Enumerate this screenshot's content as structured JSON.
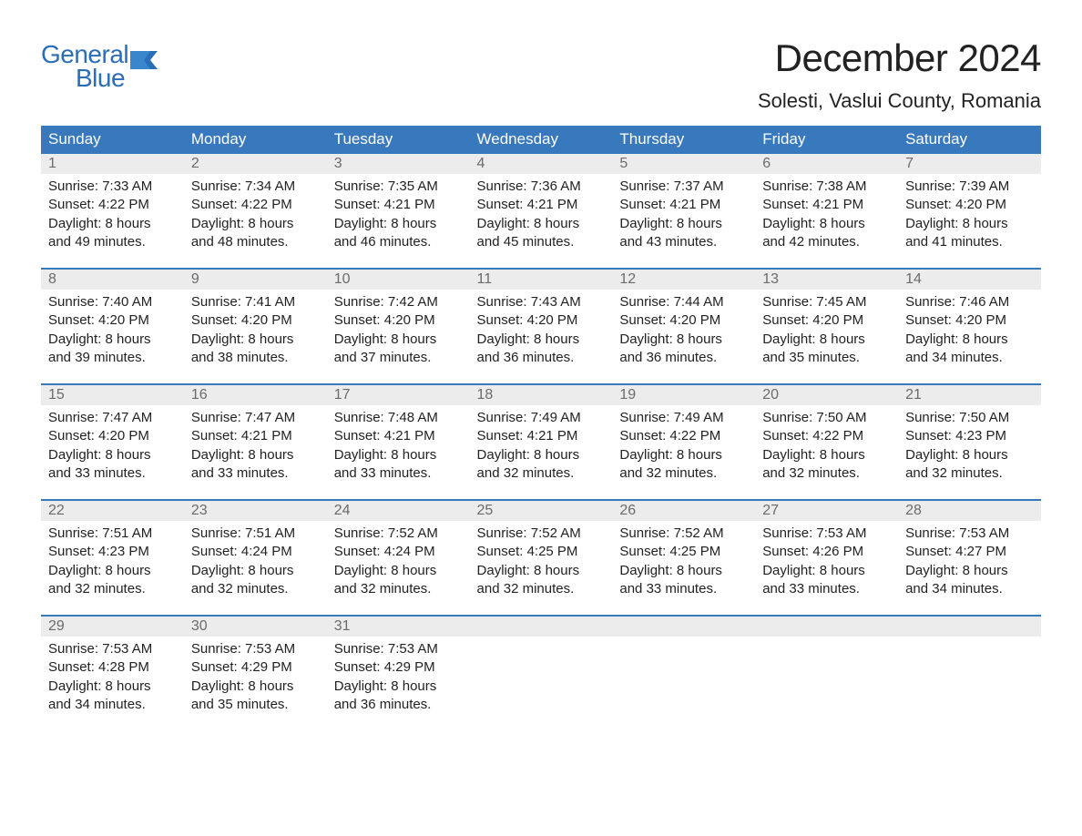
{
  "logo": {
    "text_general": "General",
    "text_blue": "Blue",
    "brand_color": "#2a6eb8",
    "flag_color": "#2a6eb8"
  },
  "title": {
    "month": "December 2024",
    "location": "Solesti, Vaslui County, Romania",
    "title_fontsize": 42,
    "location_fontsize": 22,
    "title_color": "#222222"
  },
  "styles": {
    "header_bg": "#3878bd",
    "header_text_color": "#ffffff",
    "daynum_bg": "#ececec",
    "daynum_color": "#6b6b6b",
    "body_text_color": "#222222",
    "row_border_color": "#3878bd",
    "page_bg": "#ffffff",
    "cell_fontsize": 15,
    "header_fontsize": 17
  },
  "days_of_week": [
    "Sunday",
    "Monday",
    "Tuesday",
    "Wednesday",
    "Thursday",
    "Friday",
    "Saturday"
  ],
  "weeks": [
    [
      {
        "num": "1",
        "sunrise": "Sunrise: 7:33 AM",
        "sunset": "Sunset: 4:22 PM",
        "d1": "Daylight: 8 hours",
        "d2": "and 49 minutes."
      },
      {
        "num": "2",
        "sunrise": "Sunrise: 7:34 AM",
        "sunset": "Sunset: 4:22 PM",
        "d1": "Daylight: 8 hours",
        "d2": "and 48 minutes."
      },
      {
        "num": "3",
        "sunrise": "Sunrise: 7:35 AM",
        "sunset": "Sunset: 4:21 PM",
        "d1": "Daylight: 8 hours",
        "d2": "and 46 minutes."
      },
      {
        "num": "4",
        "sunrise": "Sunrise: 7:36 AM",
        "sunset": "Sunset: 4:21 PM",
        "d1": "Daylight: 8 hours",
        "d2": "and 45 minutes."
      },
      {
        "num": "5",
        "sunrise": "Sunrise: 7:37 AM",
        "sunset": "Sunset: 4:21 PM",
        "d1": "Daylight: 8 hours",
        "d2": "and 43 minutes."
      },
      {
        "num": "6",
        "sunrise": "Sunrise: 7:38 AM",
        "sunset": "Sunset: 4:21 PM",
        "d1": "Daylight: 8 hours",
        "d2": "and 42 minutes."
      },
      {
        "num": "7",
        "sunrise": "Sunrise: 7:39 AM",
        "sunset": "Sunset: 4:20 PM",
        "d1": "Daylight: 8 hours",
        "d2": "and 41 minutes."
      }
    ],
    [
      {
        "num": "8",
        "sunrise": "Sunrise: 7:40 AM",
        "sunset": "Sunset: 4:20 PM",
        "d1": "Daylight: 8 hours",
        "d2": "and 39 minutes."
      },
      {
        "num": "9",
        "sunrise": "Sunrise: 7:41 AM",
        "sunset": "Sunset: 4:20 PM",
        "d1": "Daylight: 8 hours",
        "d2": "and 38 minutes."
      },
      {
        "num": "10",
        "sunrise": "Sunrise: 7:42 AM",
        "sunset": "Sunset: 4:20 PM",
        "d1": "Daylight: 8 hours",
        "d2": "and 37 minutes."
      },
      {
        "num": "11",
        "sunrise": "Sunrise: 7:43 AM",
        "sunset": "Sunset: 4:20 PM",
        "d1": "Daylight: 8 hours",
        "d2": "and 36 minutes."
      },
      {
        "num": "12",
        "sunrise": "Sunrise: 7:44 AM",
        "sunset": "Sunset: 4:20 PM",
        "d1": "Daylight: 8 hours",
        "d2": "and 36 minutes."
      },
      {
        "num": "13",
        "sunrise": "Sunrise: 7:45 AM",
        "sunset": "Sunset: 4:20 PM",
        "d1": "Daylight: 8 hours",
        "d2": "and 35 minutes."
      },
      {
        "num": "14",
        "sunrise": "Sunrise: 7:46 AM",
        "sunset": "Sunset: 4:20 PM",
        "d1": "Daylight: 8 hours",
        "d2": "and 34 minutes."
      }
    ],
    [
      {
        "num": "15",
        "sunrise": "Sunrise: 7:47 AM",
        "sunset": "Sunset: 4:20 PM",
        "d1": "Daylight: 8 hours",
        "d2": "and 33 minutes."
      },
      {
        "num": "16",
        "sunrise": "Sunrise: 7:47 AM",
        "sunset": "Sunset: 4:21 PM",
        "d1": "Daylight: 8 hours",
        "d2": "and 33 minutes."
      },
      {
        "num": "17",
        "sunrise": "Sunrise: 7:48 AM",
        "sunset": "Sunset: 4:21 PM",
        "d1": "Daylight: 8 hours",
        "d2": "and 33 minutes."
      },
      {
        "num": "18",
        "sunrise": "Sunrise: 7:49 AM",
        "sunset": "Sunset: 4:21 PM",
        "d1": "Daylight: 8 hours",
        "d2": "and 32 minutes."
      },
      {
        "num": "19",
        "sunrise": "Sunrise: 7:49 AM",
        "sunset": "Sunset: 4:22 PM",
        "d1": "Daylight: 8 hours",
        "d2": "and 32 minutes."
      },
      {
        "num": "20",
        "sunrise": "Sunrise: 7:50 AM",
        "sunset": "Sunset: 4:22 PM",
        "d1": "Daylight: 8 hours",
        "d2": "and 32 minutes."
      },
      {
        "num": "21",
        "sunrise": "Sunrise: 7:50 AM",
        "sunset": "Sunset: 4:23 PM",
        "d1": "Daylight: 8 hours",
        "d2": "and 32 minutes."
      }
    ],
    [
      {
        "num": "22",
        "sunrise": "Sunrise: 7:51 AM",
        "sunset": "Sunset: 4:23 PM",
        "d1": "Daylight: 8 hours",
        "d2": "and 32 minutes."
      },
      {
        "num": "23",
        "sunrise": "Sunrise: 7:51 AM",
        "sunset": "Sunset: 4:24 PM",
        "d1": "Daylight: 8 hours",
        "d2": "and 32 minutes."
      },
      {
        "num": "24",
        "sunrise": "Sunrise: 7:52 AM",
        "sunset": "Sunset: 4:24 PM",
        "d1": "Daylight: 8 hours",
        "d2": "and 32 minutes."
      },
      {
        "num": "25",
        "sunrise": "Sunrise: 7:52 AM",
        "sunset": "Sunset: 4:25 PM",
        "d1": "Daylight: 8 hours",
        "d2": "and 32 minutes."
      },
      {
        "num": "26",
        "sunrise": "Sunrise: 7:52 AM",
        "sunset": "Sunset: 4:25 PM",
        "d1": "Daylight: 8 hours",
        "d2": "and 33 minutes."
      },
      {
        "num": "27",
        "sunrise": "Sunrise: 7:53 AM",
        "sunset": "Sunset: 4:26 PM",
        "d1": "Daylight: 8 hours",
        "d2": "and 33 minutes."
      },
      {
        "num": "28",
        "sunrise": "Sunrise: 7:53 AM",
        "sunset": "Sunset: 4:27 PM",
        "d1": "Daylight: 8 hours",
        "d2": "and 34 minutes."
      }
    ],
    [
      {
        "num": "29",
        "sunrise": "Sunrise: 7:53 AM",
        "sunset": "Sunset: 4:28 PM",
        "d1": "Daylight: 8 hours",
        "d2": "and 34 minutes."
      },
      {
        "num": "30",
        "sunrise": "Sunrise: 7:53 AM",
        "sunset": "Sunset: 4:29 PM",
        "d1": "Daylight: 8 hours",
        "d2": "and 35 minutes."
      },
      {
        "num": "31",
        "sunrise": "Sunrise: 7:53 AM",
        "sunset": "Sunset: 4:29 PM",
        "d1": "Daylight: 8 hours",
        "d2": "and 36 minutes."
      },
      null,
      null,
      null,
      null
    ]
  ]
}
